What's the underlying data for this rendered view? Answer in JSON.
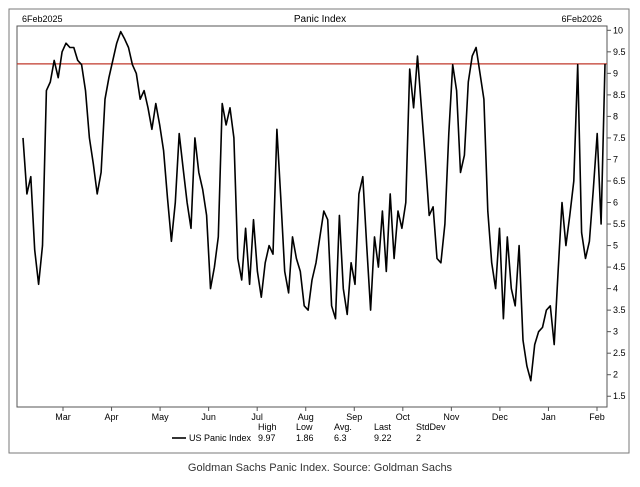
{
  "caption": "Goldman Sachs Panic Index. Source: Goldman Sachs",
  "colors": {
    "line": "#000000",
    "reference": "#c0392b",
    "frame": "#555555"
  },
  "chart_data": {
    "type": "line",
    "title": "Panic Index",
    "range_start_label": "6Feb2025",
    "range_end_label": "6Feb2026",
    "xlabel": "",
    "ylabel": "",
    "ylim": [
      1.25,
      10.1
    ],
    "yticks": [
      1.5,
      2,
      2.5,
      3,
      3.5,
      4,
      4.5,
      5,
      5.5,
      6,
      6.5,
      7,
      7.5,
      8,
      8.5,
      9,
      9.5,
      10
    ],
    "x_tick_labels": [
      "Mar",
      "Apr",
      "May",
      "Jun",
      "Jul",
      "Aug",
      "Sep",
      "Oct",
      "Nov",
      "Dec",
      "Jan",
      "Feb"
    ],
    "reference_line": 9.22,
    "grid": false,
    "series": [
      {
        "name": "US Panic Index",
        "values": [
          7.5,
          6.2,
          6.6,
          4.9,
          4.1,
          5.0,
          8.6,
          8.8,
          9.3,
          8.9,
          9.5,
          9.7,
          9.6,
          9.6,
          9.3,
          9.2,
          8.6,
          7.5,
          6.9,
          6.2,
          6.7,
          8.4,
          8.9,
          9.3,
          9.7,
          9.97,
          9.8,
          9.6,
          9.2,
          9.0,
          8.4,
          8.6,
          8.2,
          7.7,
          8.3,
          7.8,
          7.2,
          6.1,
          5.1,
          6.0,
          7.6,
          6.8,
          6.0,
          5.4,
          7.5,
          6.7,
          6.3,
          5.7,
          4.0,
          4.5,
          5.2,
          8.3,
          7.8,
          8.2,
          7.5,
          4.7,
          4.2,
          5.4,
          4.1,
          5.6,
          4.4,
          3.8,
          4.6,
          5.0,
          4.8,
          7.7,
          6.1,
          4.4,
          3.9,
          5.2,
          4.7,
          4.4,
          3.6,
          3.5,
          4.2,
          4.6,
          5.2,
          5.8,
          5.6,
          3.6,
          3.3,
          5.7,
          4.0,
          3.4,
          4.6,
          4.1,
          6.2,
          6.6,
          5.0,
          3.5,
          5.2,
          4.5,
          5.8,
          4.4,
          6.2,
          4.7,
          5.8,
          5.4,
          6.0,
          9.1,
          8.2,
          9.4,
          8.2,
          7.0,
          5.7,
          5.9,
          4.7,
          4.6,
          5.5,
          7.6,
          9.2,
          8.6,
          6.7,
          7.1,
          8.8,
          9.4,
          9.6,
          9.0,
          8.4,
          5.8,
          4.6,
          4.0,
          5.4,
          3.3,
          5.2,
          4.0,
          3.6,
          5.0,
          2.8,
          2.2,
          1.86,
          2.7,
          3.0,
          3.1,
          3.5,
          3.6,
          2.7,
          4.4,
          6.0,
          5.0,
          5.7,
          6.5,
          9.2,
          5.3,
          4.7,
          5.1,
          6.3,
          7.6,
          5.5,
          9.22
        ]
      }
    ],
    "stats": {
      "headers": [
        "High",
        "Low",
        "Avg.",
        "Last",
        "StdDev"
      ],
      "values": [
        "9.97",
        "1.86",
        "6.3",
        "9.22",
        "2"
      ]
    }
  }
}
